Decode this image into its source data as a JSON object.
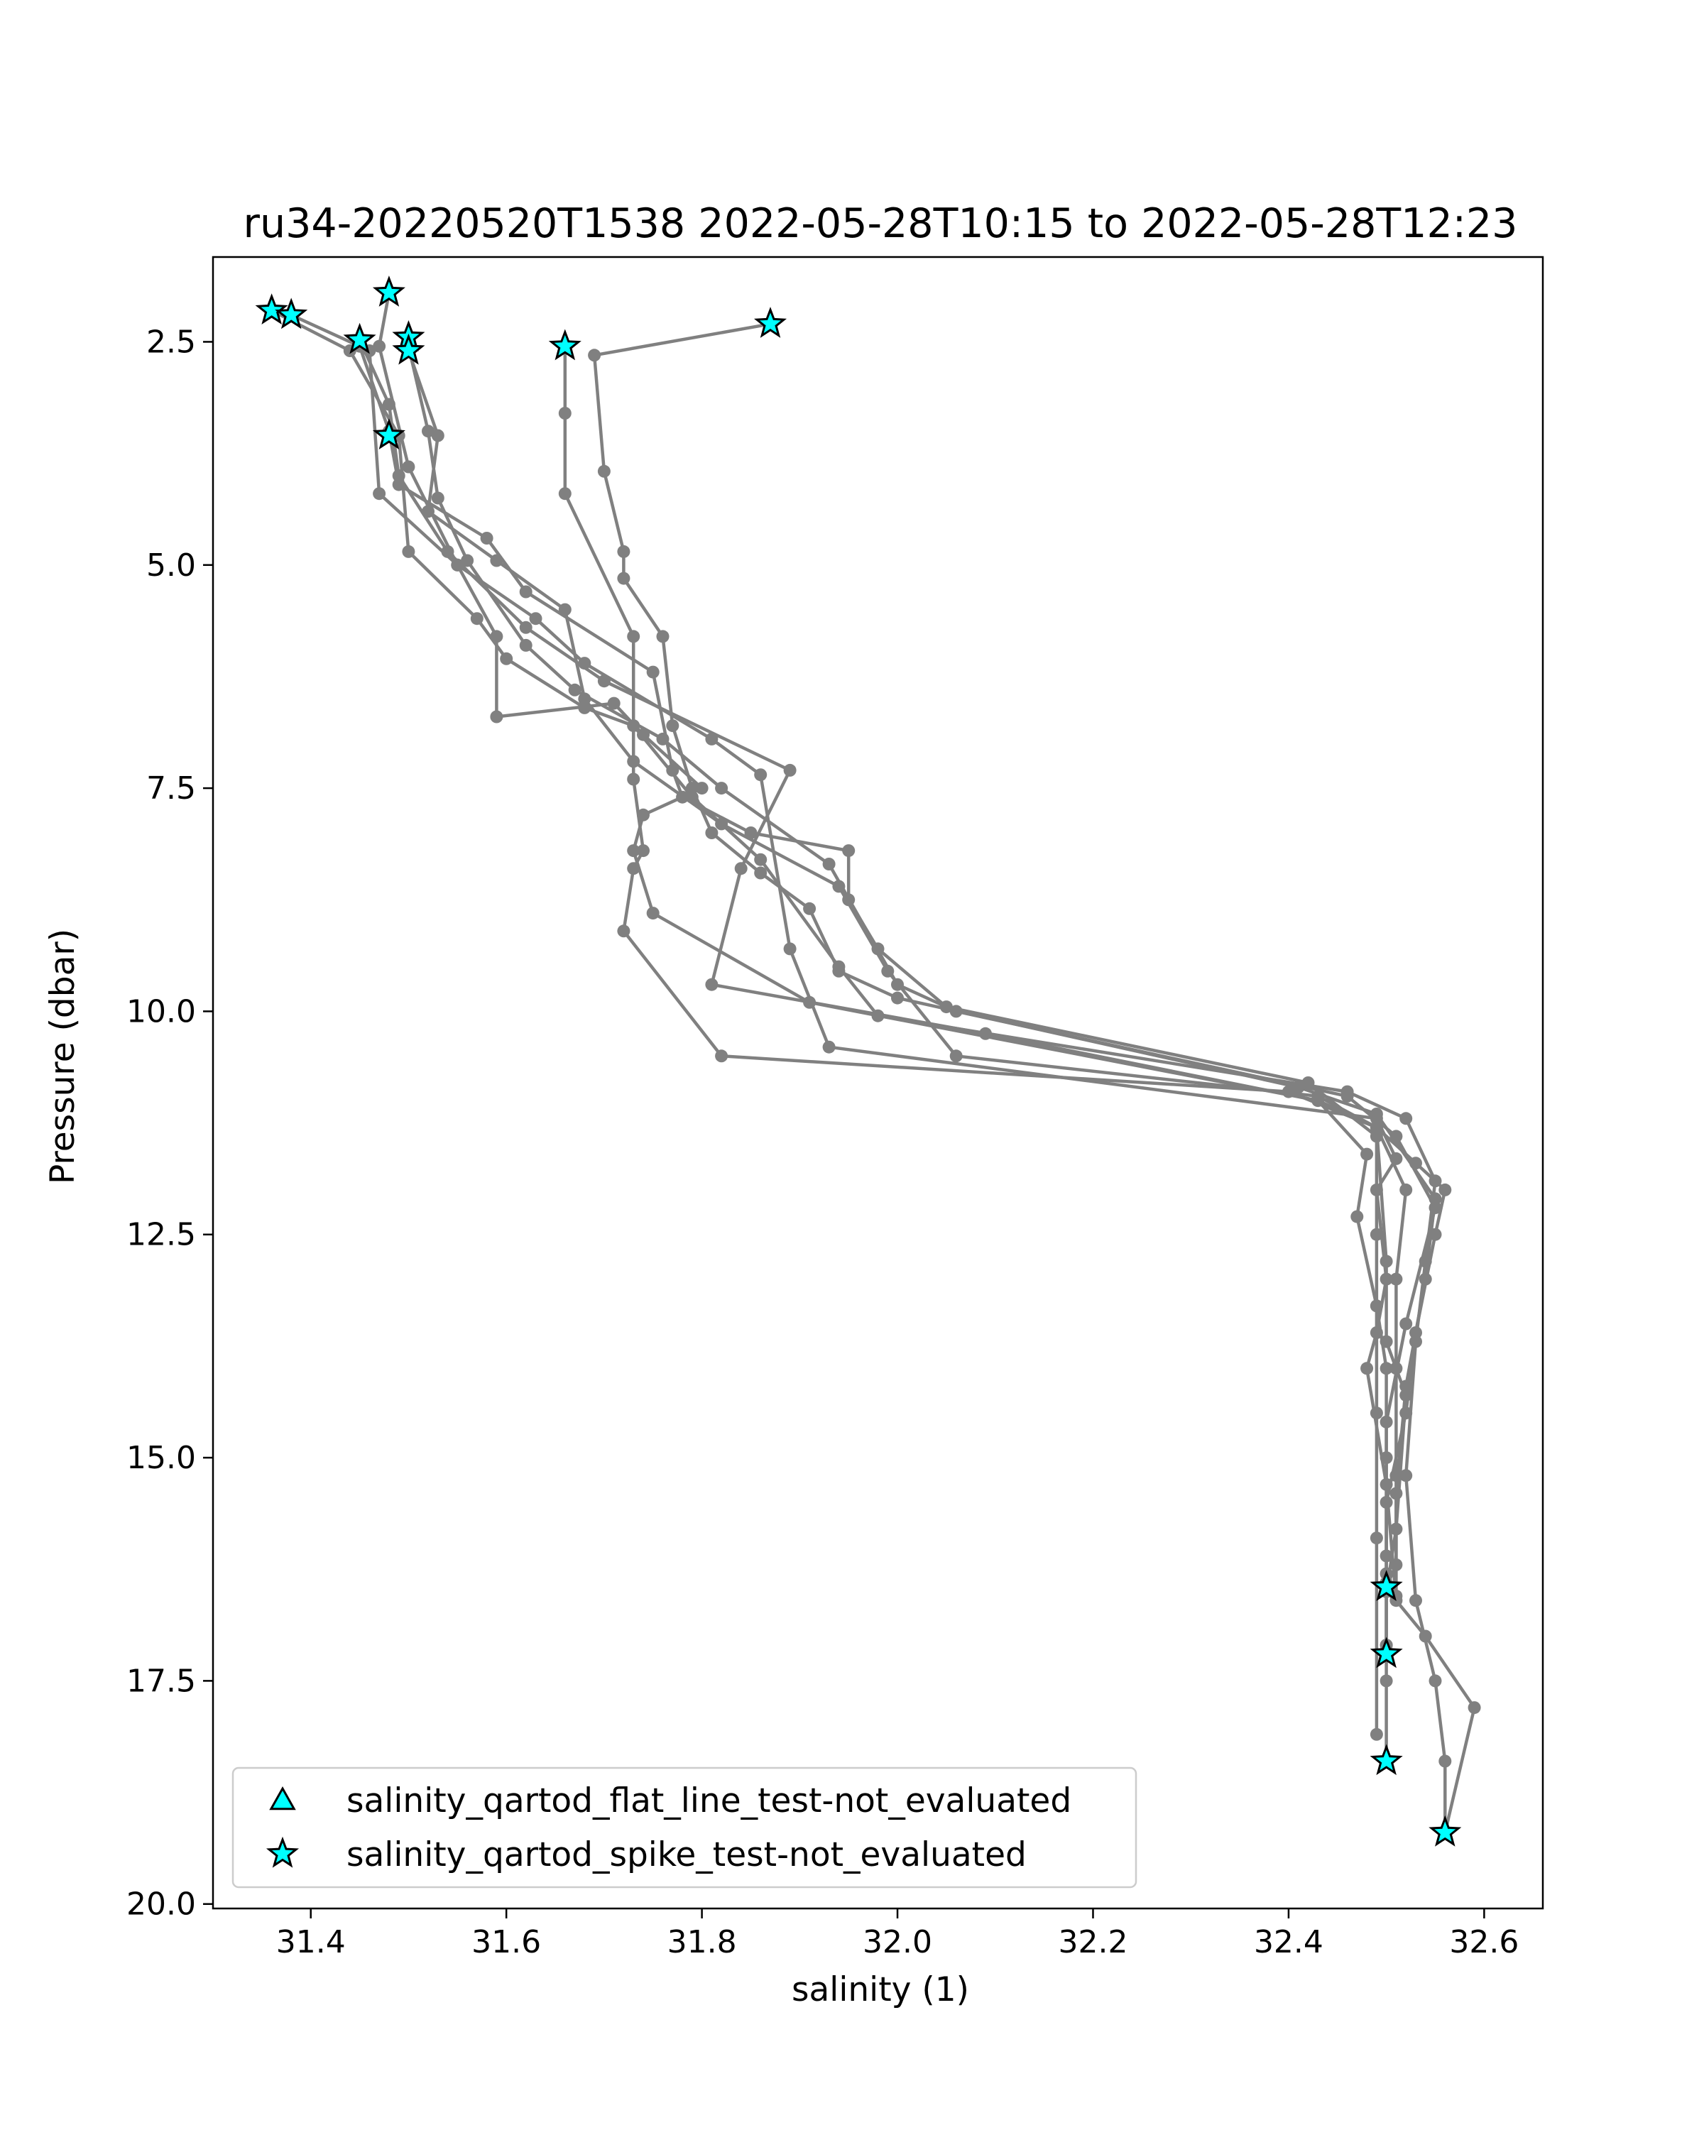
{
  "chart_data": {
    "type": "scatter",
    "title": "ru34-20220520T1538 2022-05-28T10:15 to 2022-05-28T12:23",
    "xlabel": "salinity (1)",
    "ylabel": "Pressure (dbar)",
    "xlim": [
      31.3,
      32.66
    ],
    "ylim": [
      20.05,
      1.55
    ],
    "y_inverted": true,
    "grid": false,
    "legend_position": "lower-left",
    "xticks": [
      {
        "value": 31.4,
        "label": "31.4"
      },
      {
        "value": 31.6,
        "label": "31.6"
      },
      {
        "value": 31.8,
        "label": "31.8"
      },
      {
        "value": 32.0,
        "label": "32.0"
      },
      {
        "value": 32.2,
        "label": "32.2"
      },
      {
        "value": 32.4,
        "label": "32.4"
      },
      {
        "value": 32.6,
        "label": "32.6"
      }
    ],
    "yticks": [
      {
        "value": 2.5,
        "label": "2.5"
      },
      {
        "value": 5.0,
        "label": "5.0"
      },
      {
        "value": 7.5,
        "label": "7.5"
      },
      {
        "value": 10.0,
        "label": "10.0"
      },
      {
        "value": 12.5,
        "label": "12.5"
      },
      {
        "value": 15.0,
        "label": "15.0"
      },
      {
        "value": 17.5,
        "label": "17.5"
      },
      {
        "value": 20.0,
        "label": "20.0"
      }
    ],
    "colors": {
      "profile_line": "#808080",
      "marker_fill": "#00ffff",
      "marker_edge": "#000000"
    },
    "profiles": [
      [
        [
          31.87,
          2.3
        ],
        [
          31.69,
          2.65
        ],
        [
          31.7,
          3.95
        ],
        [
          31.72,
          4.85
        ],
        [
          31.72,
          5.15
        ],
        [
          31.76,
          5.8
        ],
        [
          31.77,
          6.8
        ],
        [
          31.79,
          7.5
        ],
        [
          31.81,
          8.0
        ],
        [
          31.86,
          8.45
        ],
        [
          31.91,
          8.85
        ],
        [
          31.94,
          9.55
        ],
        [
          32.0,
          9.85
        ],
        [
          32.41,
          10.85
        ],
        [
          32.49,
          11.15
        ],
        [
          32.55,
          12.1
        ],
        [
          32.54,
          13.0
        ],
        [
          32.52,
          14.2
        ],
        [
          32.51,
          15.4
        ],
        [
          32.51,
          16.2
        ],
        [
          32.5,
          16.45
        ]
      ],
      [
        [
          31.66,
          2.55
        ],
        [
          31.66,
          3.3
        ],
        [
          31.66,
          4.2
        ],
        [
          31.73,
          5.8
        ],
        [
          31.73,
          7.4
        ],
        [
          31.74,
          8.2
        ],
        [
          31.73,
          8.4
        ],
        [
          31.72,
          9.1
        ],
        [
          31.82,
          10.5
        ],
        [
          32.4,
          10.9
        ],
        [
          32.49,
          11.3
        ],
        [
          32.53,
          11.7
        ],
        [
          32.56,
          12.0
        ],
        [
          32.55,
          12.5
        ],
        [
          32.53,
          13.6
        ],
        [
          32.52,
          14.5
        ],
        [
          32.5,
          15.5
        ],
        [
          32.5,
          16.4
        ],
        [
          32.5,
          16.5
        ],
        [
          32.5,
          17.1
        ],
        [
          32.5,
          17.2
        ]
      ],
      [
        [
          31.38,
          2.2
        ],
        [
          31.45,
          2.55
        ],
        [
          31.48,
          3.5
        ],
        [
          31.49,
          4.1
        ],
        [
          31.58,
          4.7
        ],
        [
          31.62,
          5.3
        ],
        [
          31.75,
          6.2
        ],
        [
          31.77,
          7.3
        ],
        [
          31.78,
          7.6
        ],
        [
          31.85,
          8.0
        ],
        [
          31.95,
          8.2
        ],
        [
          31.95,
          8.75
        ],
        [
          31.98,
          9.3
        ],
        [
          32.05,
          9.95
        ],
        [
          32.42,
          10.8
        ],
        [
          32.49,
          11.4
        ],
        [
          32.49,
          12.5
        ],
        [
          32.49,
          13.3
        ],
        [
          32.5,
          14.0
        ],
        [
          32.5,
          15.0
        ],
        [
          32.5,
          16.1
        ],
        [
          32.5,
          17.5
        ],
        [
          32.5,
          18.4
        ]
      ],
      [
        [
          31.36,
          2.15
        ],
        [
          31.44,
          2.6
        ],
        [
          31.49,
          3.55
        ],
        [
          31.5,
          4.85
        ],
        [
          31.57,
          5.6
        ],
        [
          31.6,
          6.05
        ],
        [
          31.68,
          6.6
        ],
        [
          31.73,
          6.8
        ],
        [
          31.79,
          7.6
        ],
        [
          31.86,
          8.3
        ],
        [
          31.94,
          9.5
        ],
        [
          31.98,
          10.05
        ],
        [
          32.46,
          10.9
        ],
        [
          32.52,
          11.2
        ],
        [
          32.55,
          11.9
        ],
        [
          32.54,
          12.8
        ],
        [
          32.53,
          13.7
        ],
        [
          32.52,
          15.2
        ],
        [
          32.53,
          16.6
        ],
        [
          32.55,
          17.5
        ],
        [
          32.56,
          18.4
        ],
        [
          32.56,
          19.2
        ]
      ],
      [
        [
          31.48,
          1.95
        ],
        [
          31.47,
          2.55
        ],
        [
          31.5,
          3.9
        ],
        [
          31.55,
          5.0
        ],
        [
          31.63,
          5.6
        ],
        [
          31.68,
          6.1
        ],
        [
          31.81,
          6.95
        ],
        [
          31.86,
          7.35
        ],
        [
          31.89,
          9.3
        ],
        [
          31.93,
          10.4
        ],
        [
          32.49,
          11.2
        ],
        [
          32.51,
          11.65
        ],
        [
          32.49,
          12.0
        ],
        [
          32.5,
          13.0
        ],
        [
          32.49,
          13.6
        ],
        [
          32.48,
          14.0
        ],
        [
          32.5,
          15.3
        ],
        [
          32.51,
          16.6
        ],
        [
          32.54,
          17.0
        ],
        [
          32.59,
          17.8
        ],
        [
          32.56,
          19.2
        ]
      ],
      [
        [
          31.45,
          2.48
        ],
        [
          31.48,
          3.2
        ],
        [
          31.49,
          4.0
        ],
        [
          31.54,
          4.85
        ],
        [
          31.62,
          5.7
        ],
        [
          31.7,
          6.3
        ],
        [
          31.89,
          7.3
        ],
        [
          31.84,
          8.4
        ],
        [
          31.81,
          9.7
        ],
        [
          32.09,
          10.25
        ],
        [
          32.43,
          11.0
        ],
        [
          32.48,
          11.6
        ],
        [
          32.47,
          12.3
        ],
        [
          32.49,
          13.3
        ],
        [
          32.49,
          14.5
        ],
        [
          32.49,
          15.9
        ],
        [
          32.49,
          18.1
        ]
      ],
      [
        [
          31.5,
          2.45
        ],
        [
          31.5,
          2.6
        ],
        [
          31.53,
          3.55
        ],
        [
          31.52,
          4.4
        ],
        [
          31.59,
          4.95
        ],
        [
          31.66,
          5.5
        ],
        [
          31.68,
          6.5
        ],
        [
          31.73,
          7.2
        ],
        [
          31.82,
          7.9
        ],
        [
          31.94,
          8.6
        ],
        [
          31.99,
          9.55
        ],
        [
          32.06,
          10.5
        ],
        [
          32.43,
          10.95
        ],
        [
          32.49,
          11.3
        ],
        [
          32.52,
          12.0
        ],
        [
          32.51,
          13.0
        ],
        [
          32.51,
          14.0
        ],
        [
          32.51,
          15.2
        ],
        [
          32.51,
          16.55
        ]
      ],
      [
        [
          31.5,
          2.55
        ],
        [
          31.52,
          3.5
        ],
        [
          31.53,
          4.25
        ],
        [
          31.56,
          4.95
        ],
        [
          31.62,
          5.9
        ],
        [
          31.67,
          6.4
        ],
        [
          31.76,
          6.95
        ],
        [
          31.82,
          7.5
        ],
        [
          31.93,
          8.35
        ],
        [
          32.0,
          9.7
        ],
        [
          32.06,
          10.0
        ],
        [
          32.46,
          10.95
        ],
        [
          32.51,
          11.4
        ],
        [
          32.55,
          12.2
        ],
        [
          32.52,
          13.5
        ],
        [
          32.5,
          14.6
        ],
        [
          32.5,
          16.3
        ],
        [
          32.5,
          17.1
        ]
      ],
      [
        [
          31.46,
          2.6
        ],
        [
          31.47,
          4.2
        ],
        [
          31.55,
          5.0
        ],
        [
          31.59,
          5.8
        ],
        [
          31.59,
          6.7
        ],
        [
          31.71,
          6.55
        ],
        [
          31.74,
          6.9
        ],
        [
          31.8,
          7.5
        ],
        [
          31.74,
          7.8
        ],
        [
          31.73,
          8.2
        ],
        [
          31.75,
          8.9
        ],
        [
          31.91,
          9.9
        ],
        [
          32.43,
          11.0
        ],
        [
          32.49,
          11.3
        ],
        [
          32.5,
          12.8
        ],
        [
          32.5,
          13.7
        ],
        [
          32.52,
          14.3
        ],
        [
          32.51,
          15.8
        ],
        [
          32.5,
          16.5
        ]
      ]
    ],
    "flagged_points": [
      {
        "x": 31.36,
        "y": 2.15,
        "test": "spike"
      },
      {
        "x": 31.38,
        "y": 2.2,
        "test": "spike"
      },
      {
        "x": 31.45,
        "y": 2.48,
        "test": "spike"
      },
      {
        "x": 31.48,
        "y": 1.95,
        "test": "spike"
      },
      {
        "x": 31.5,
        "y": 2.45,
        "test": "spike"
      },
      {
        "x": 31.5,
        "y": 2.6,
        "test": "spike"
      },
      {
        "x": 31.66,
        "y": 2.55,
        "test": "spike"
      },
      {
        "x": 31.87,
        "y": 2.3,
        "test": "spike"
      },
      {
        "x": 31.48,
        "y": 3.55,
        "test": "spike"
      },
      {
        "x": 32.5,
        "y": 16.45,
        "test": "spike"
      },
      {
        "x": 32.5,
        "y": 17.2,
        "test": "spike"
      },
      {
        "x": 32.5,
        "y": 18.4,
        "test": "spike"
      },
      {
        "x": 32.56,
        "y": 19.2,
        "test": "spike"
      }
    ],
    "legend": [
      {
        "label": "salinity_qartod_flat_line_test-not_evaluated",
        "marker": "triangle"
      },
      {
        "label": "salinity_qartod_spike_test-not_evaluated",
        "marker": "star"
      }
    ]
  }
}
